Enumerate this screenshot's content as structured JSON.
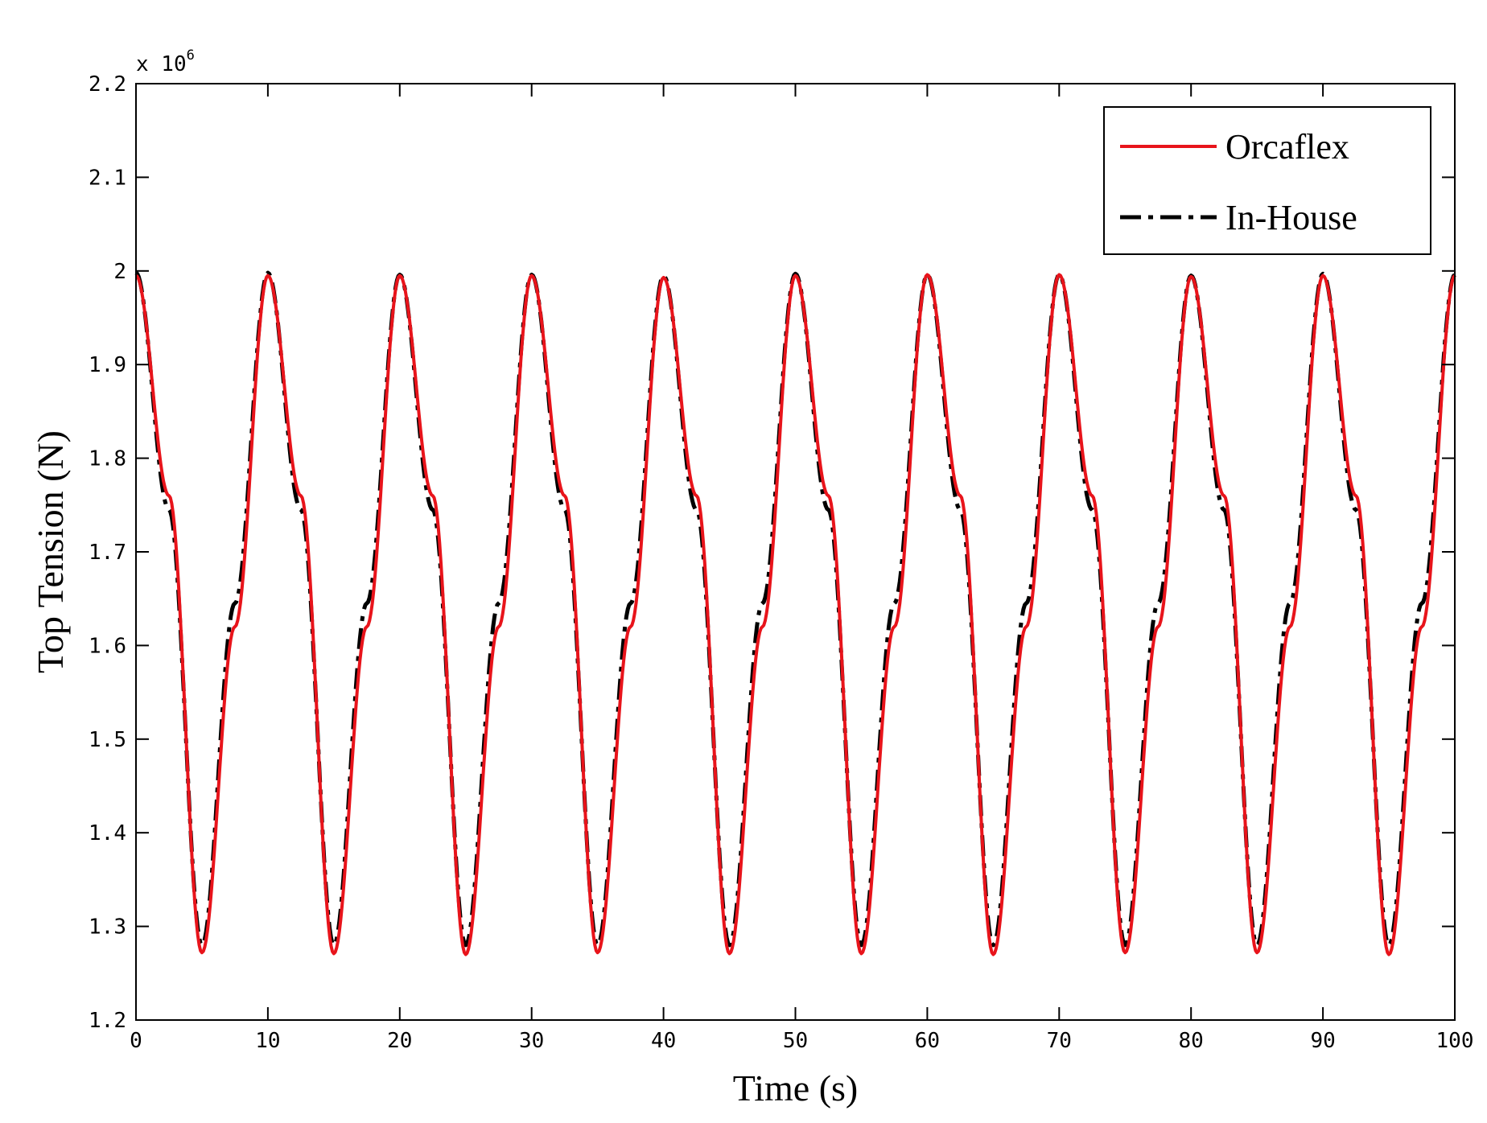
{
  "chart_data": {
    "type": "line",
    "title": "",
    "xlabel": "Time (s)",
    "ylabel": "Top Tension (N)",
    "y_multiplier": {
      "prefix": "x 10",
      "exponent": "6"
    },
    "xlim": [
      0,
      100
    ],
    "ylim": [
      1.2,
      2.2
    ],
    "x_ticks": [
      0,
      10,
      20,
      30,
      40,
      50,
      60,
      70,
      80,
      90,
      100
    ],
    "y_ticks": [
      1.2,
      1.3,
      1.4,
      1.5,
      1.6,
      1.7,
      1.8,
      1.9,
      2.0,
      2.1,
      2.2
    ],
    "x_tick_labels": [
      "0",
      "10",
      "20",
      "30",
      "40",
      "50",
      "60",
      "70",
      "80",
      "90",
      "100"
    ],
    "y_tick_labels": [
      "1.2",
      "1.3",
      "1.4",
      "1.5",
      "1.6",
      "1.7",
      "1.8",
      "1.9",
      "2",
      "2.1",
      "2.2"
    ],
    "grid": false,
    "legend_position": "top-right",
    "series": [
      {
        "name": "Orcaflex",
        "color": "#e8141b",
        "style": "solid",
        "x": [
          0,
          2.5,
          5,
          7.5,
          10,
          12.5,
          15,
          17.5,
          20,
          22.5,
          25,
          27.5,
          30,
          32.5,
          35,
          37.5,
          40,
          42.5,
          45,
          47.5,
          50,
          52.5,
          55,
          57.5,
          60,
          62.5,
          65,
          67.5,
          70,
          72.5,
          75,
          77.5,
          80,
          82.5,
          85,
          87.5,
          90,
          92.5,
          95,
          97.5,
          100
        ],
        "y": [
          1.995,
          1.76,
          1.272,
          1.62,
          1.995,
          1.76,
          1.271,
          1.62,
          1.995,
          1.76,
          1.27,
          1.62,
          1.995,
          1.76,
          1.272,
          1.62,
          1.993,
          1.76,
          1.271,
          1.62,
          1.995,
          1.76,
          1.271,
          1.62,
          1.996,
          1.76,
          1.27,
          1.62,
          1.996,
          1.76,
          1.272,
          1.62,
          1.994,
          1.76,
          1.272,
          1.62,
          1.995,
          1.76,
          1.27,
          1.62,
          1.995
        ]
      },
      {
        "name": "In-House",
        "color": "#000000",
        "style": "dash-dot",
        "x": [
          0,
          2.5,
          5,
          7.5,
          10,
          12.5,
          15,
          17.5,
          20,
          22.5,
          25,
          27.5,
          30,
          32.5,
          35,
          37.5,
          40,
          42.5,
          45,
          47.5,
          50,
          52.5,
          55,
          57.5,
          60,
          62.5,
          65,
          67.5,
          70,
          72.5,
          75,
          77.5,
          80,
          82.5,
          85,
          87.5,
          90,
          92.5,
          95,
          97.5,
          100
        ],
        "y": [
          1.998,
          1.745,
          1.28,
          1.645,
          1.998,
          1.745,
          1.28,
          1.645,
          1.996,
          1.745,
          1.28,
          1.645,
          1.996,
          1.745,
          1.28,
          1.645,
          1.995,
          1.745,
          1.28,
          1.645,
          1.997,
          1.745,
          1.28,
          1.645,
          1.996,
          1.745,
          1.28,
          1.645,
          1.996,
          1.745,
          1.28,
          1.645,
          1.995,
          1.745,
          1.28,
          1.645,
          1.997,
          1.745,
          1.28,
          1.645,
          1.996
        ]
      }
    ]
  }
}
